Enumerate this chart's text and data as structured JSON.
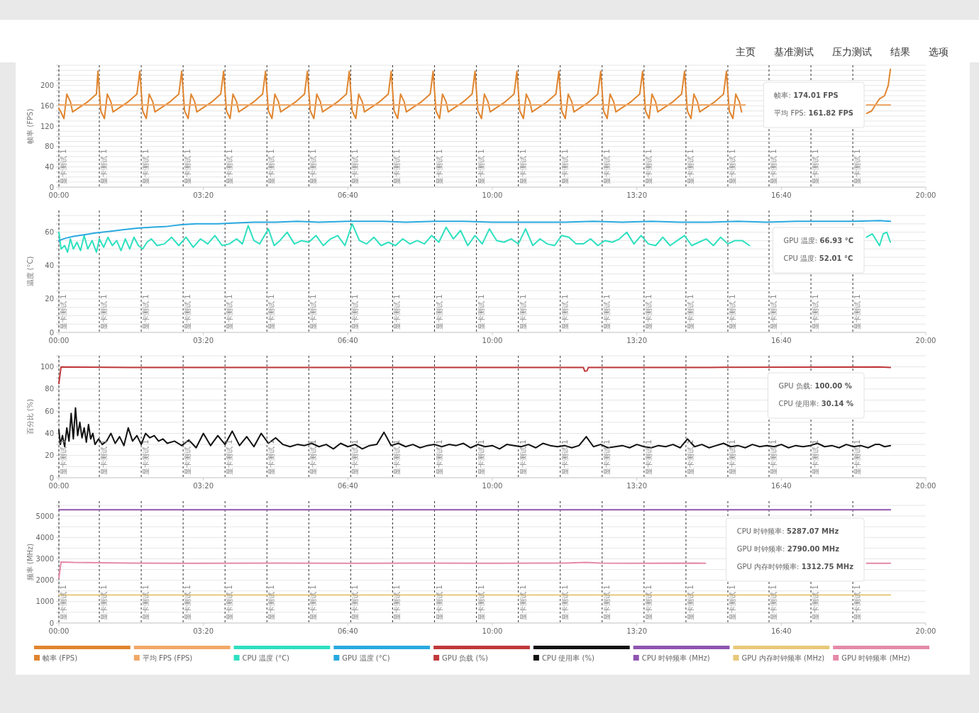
{
  "chart_data": [
    {
      "type": "other",
      "annotations": [
        "主页",
        "基准测试",
        "压力测试",
        "结果",
        "选项"
      ]
    },
    {
      "type": "line",
      "ylabel": "帧率 (FPS)",
      "xlim": [
        0,
        1200
      ],
      "ylim": [
        0,
        240
      ],
      "grid": "y",
      "legend": "bottom",
      "xticks": [
        {
          "value": 0,
          "label": "00:00"
        },
        {
          "value": 200,
          "label": "03:20"
        },
        {
          "value": 400,
          "label": "06:40"
        },
        {
          "value": 600,
          "label": "10:00"
        },
        {
          "value": 800,
          "label": "13:20"
        },
        {
          "value": 1000,
          "label": "16:40"
        },
        {
          "value": 1200,
          "label": "20:00"
        }
      ],
      "yticks": [
        0,
        {
          "value": 10,
          "label": null
        },
        {
          "value": 20,
          "label": null
        },
        {
          "value": 30,
          "label": null
        },
        40,
        {
          "value": 50,
          "label": null
        },
        {
          "value": 60,
          "label": null
        },
        {
          "value": 70,
          "label": null
        },
        80,
        {
          "value": 90,
          "label": null
        },
        {
          "value": 100,
          "label": null
        },
        {
          "value": 110,
          "label": null
        },
        120,
        {
          "value": 130,
          "label": null
        },
        {
          "value": 140,
          "label": null
        },
        {
          "value": 150,
          "label": null
        },
        160,
        {
          "value": 170,
          "label": null
        },
        {
          "value": 180,
          "label": null
        },
        {
          "value": 190,
          "label": null
        },
        200,
        {
          "value": 210,
          "label": null
        },
        {
          "value": 220,
          "label": null
        },
        {
          "value": 230,
          "label": null
        },
        {
          "value": 240,
          "label": null
        }
      ],
      "series": [
        {
          "name": "帧率 (FPS)",
          "color": "#e0852f",
          "x": [
            0,
            2,
            7,
            11,
            16,
            19,
            40,
            52,
            54,
            58,
            63,
            67,
            72,
            75,
            96,
            108,
            112,
            116,
            121,
            125,
            130,
            133,
            154,
            166,
            170,
            174,
            179,
            183,
            188,
            191,
            212,
            224,
            228,
            232,
            237,
            241,
            246,
            249,
            270,
            282,
            286,
            290,
            295,
            299,
            304,
            307,
            328,
            340,
            344,
            348,
            353,
            357,
            362,
            365,
            386,
            398,
            402,
            406,
            411,
            415,
            420,
            423,
            444,
            456,
            460,
            464,
            469,
            473,
            478,
            481,
            502,
            514,
            518,
            522,
            527,
            531,
            536,
            539,
            560,
            572,
            576,
            580,
            585,
            589,
            594,
            597,
            618,
            630,
            634,
            638,
            643,
            647,
            652,
            655,
            676,
            688,
            692,
            696,
            701,
            705,
            710,
            713,
            734,
            746,
            750,
            754,
            759,
            763,
            768,
            771,
            792,
            804,
            808,
            812,
            817,
            821,
            826,
            829,
            850,
            862,
            866,
            870,
            875,
            879,
            884,
            887,
            908,
            920,
            924,
            928,
            933,
            937,
            942,
            945
          ],
          "values": [
            155,
            150,
            135,
            183,
            168,
            148,
            168,
            183,
            228,
            150,
            135,
            183,
            168,
            148,
            168,
            183,
            228,
            150,
            135,
            183,
            168,
            148,
            168,
            183,
            228,
            150,
            135,
            183,
            168,
            148,
            168,
            183,
            228,
            150,
            135,
            183,
            168,
            148,
            168,
            183,
            228,
            150,
            135,
            183,
            168,
            148,
            168,
            183,
            228,
            150,
            135,
            183,
            168,
            148,
            168,
            183,
            228,
            150,
            135,
            183,
            168,
            148,
            168,
            183,
            228,
            150,
            135,
            183,
            168,
            148,
            168,
            183,
            228,
            150,
            135,
            183,
            168,
            148,
            168,
            183,
            228,
            150,
            135,
            183,
            168,
            148,
            168,
            183,
            228,
            150,
            135,
            183,
            168,
            148,
            168,
            183,
            228,
            150,
            135,
            183,
            168,
            148,
            168,
            183,
            228,
            150,
            135,
            183,
            168,
            148,
            168,
            183,
            228,
            150,
            135,
            183,
            168,
            148,
            168,
            183,
            228,
            150,
            135,
            183,
            168,
            148,
            168,
            183,
            228,
            150,
            135,
            183,
            168,
            148
          ]
        },
        {
          "color": "#e0852f",
          "x": [
            1118,
            1125,
            1136,
            1143,
            1148,
            1151
          ],
          "values": [
            145,
            150,
            174,
            180,
            200,
            232
          ]
        },
        {
          "name": "平均 FPS (FPS)",
          "color": "#f0a868",
          "x": [
            0,
            950
          ],
          "values": [
            162,
            162
          ]
        },
        {
          "color": "#f0a868",
          "x": [
            1118,
            1151
          ],
          "values": [
            162,
            162
          ]
        }
      ],
      "annotations": [
        "帧率: 174.01 FPS",
        "平均 FPS: 161.82 FPS"
      ],
      "ref_lines": [
        {
          "axis": "x",
          "value": 0,
          "label": "显卡测试 1",
          "color": "#333333",
          "line_style": "dashed"
        },
        {
          "axis": "x",
          "value": 56,
          "label": "显卡测试 1",
          "color": "#333333",
          "line_style": "dashed"
        },
        {
          "axis": "x",
          "value": 114,
          "label": "显卡测试 1",
          "color": "#333333",
          "line_style": "dashed"
        },
        {
          "axis": "x",
          "value": 172,
          "label": "显卡测试 1",
          "color": "#333333",
          "line_style": "dashed"
        },
        {
          "axis": "x",
          "value": 230,
          "label": "显卡测试 1",
          "color": "#333333",
          "line_style": "dashed"
        },
        {
          "axis": "x",
          "value": 288,
          "label": "显卡测试 1",
          "color": "#333333",
          "line_style": "dashed"
        },
        {
          "axis": "x",
          "value": 346,
          "label": "显卡测试 1",
          "color": "#333333",
          "line_style": "dashed"
        },
        {
          "axis": "x",
          "value": 404,
          "label": "显卡测试 1",
          "color": "#333333",
          "line_style": "dashed"
        },
        {
          "axis": "x",
          "value": 462,
          "label": "显卡测试 1",
          "color": "#333333",
          "line_style": "dashed"
        },
        {
          "axis": "x",
          "value": 520,
          "label": "显卡测试 1",
          "color": "#333333",
          "line_style": "dashed"
        },
        {
          "axis": "x",
          "value": 578,
          "label": "显卡测试 1",
          "color": "#333333",
          "line_style": "dashed"
        },
        {
          "axis": "x",
          "value": 636,
          "label": "显卡测试 1",
          "color": "#333333",
          "line_style": "dashed"
        },
        {
          "axis": "x",
          "value": 694,
          "label": "显卡测试 1",
          "color": "#333333",
          "line_style": "dashed"
        },
        {
          "axis": "x",
          "value": 752,
          "label": "显卡测试 1",
          "color": "#333333",
          "line_style": "dashed"
        },
        {
          "axis": "x",
          "value": 810,
          "label": "显卡测试 1",
          "color": "#333333",
          "line_style": "dashed"
        },
        {
          "axis": "x",
          "value": 868,
          "label": "显卡测试 1",
          "color": "#333333",
          "line_style": "dashed"
        },
        {
          "axis": "x",
          "value": 926,
          "label": "显卡测试 1",
          "color": "#333333",
          "line_style": "dashed"
        },
        {
          "axis": "x",
          "value": 983,
          "label": "显卡测试 1",
          "color": "#333333",
          "line_style": "dashed"
        },
        {
          "axis": "x",
          "value": 1041,
          "label": "显卡测试 1",
          "color": "#333333",
          "line_style": "dashed"
        },
        {
          "axis": "x",
          "value": 1099,
          "label": "显卡测试 1",
          "color": "#333333",
          "line_style": "dashed"
        }
      ]
    },
    {
      "type": "line",
      "ylabel": "温度 (°C)",
      "xlim": [
        0,
        1200
      ],
      "ylim": [
        0,
        73
      ],
      "grid": "y",
      "legend": "bottom",
      "xticks": [
        {
          "value": 0,
          "label": "00:00"
        },
        {
          "value": 200,
          "label": "03:20"
        },
        {
          "value": 400,
          "label": "06:40"
        },
        {
          "value": 600,
          "label": "10:00"
        },
        {
          "value": 800,
          "label": "13:20"
        },
        {
          "value": 1000,
          "label": "16:40"
        },
        {
          "value": 1200,
          "label": "20:00"
        }
      ],
      "yticks": [
        0,
        {
          "value": 5,
          "label": null
        },
        {
          "value": 10,
          "label": null
        },
        {
          "value": 15,
          "label": null
        },
        20,
        {
          "value": 25,
          "label": null
        },
        {
          "value": 30,
          "label": null
        },
        {
          "value": 35,
          "label": null
        },
        40,
        {
          "value": 45,
          "label": null
        },
        {
          "value": 50,
          "label": null
        },
        {
          "value": 55,
          "label": null
        },
        60,
        {
          "value": 65,
          "label": null
        },
        {
          "value": 70,
          "label": null
        }
      ],
      "series": [
        {
          "name": "CPU 温度 (°C)",
          "color": "#2de0c0",
          "x": [
            0,
            3,
            8,
            12,
            16,
            20,
            25,
            30,
            35,
            40,
            46,
            52,
            56,
            62,
            68,
            74,
            80,
            86,
            92,
            98,
            104,
            110,
            116,
            122,
            128,
            136,
            146,
            156,
            166,
            176,
            186,
            196,
            206,
            216,
            226,
            236,
            246,
            254,
            262,
            270,
            278,
            290,
            298,
            306,
            316,
            326,
            336,
            346,
            356,
            366,
            376,
            386,
            396,
            406,
            416,
            426,
            436,
            446,
            456,
            466,
            476,
            486,
            496,
            506,
            516,
            526,
            536,
            546,
            556,
            566,
            576,
            586,
            596,
            606,
            616,
            626,
            636,
            646,
            656,
            666,
            676,
            686,
            696,
            706,
            716,
            726,
            736,
            746,
            756,
            766,
            776,
            786,
            796,
            806,
            816,
            826,
            836,
            846,
            856,
            866,
            876,
            886,
            896,
            906,
            916,
            926,
            936,
            946,
            956
          ],
          "values": [
            60,
            50,
            52,
            48,
            56,
            50,
            54,
            49,
            58,
            50,
            55,
            48,
            56,
            51,
            57,
            52,
            55,
            49,
            56,
            50,
            57,
            52,
            50,
            54,
            56,
            52,
            53,
            57,
            52,
            57,
            51,
            56,
            53,
            58,
            52,
            53,
            56,
            53,
            64,
            55,
            53,
            62,
            52,
            55,
            60,
            53,
            55,
            54,
            58,
            52,
            56,
            58,
            52,
            65,
            55,
            53,
            57,
            52,
            54,
            52,
            56,
            53,
            55,
            53,
            58,
            54,
            63,
            56,
            61,
            52,
            58,
            53,
            62,
            55,
            54,
            56,
            53,
            62,
            52,
            56,
            53,
            52,
            58,
            57,
            53,
            53,
            56,
            52,
            55,
            54,
            56,
            60,
            53,
            58,
            53,
            52,
            57,
            52,
            55,
            58,
            52,
            54,
            56,
            52,
            57,
            53,
            55,
            55,
            52
          ]
        },
        {
          "color": "#2de0c0",
          "x": [
            1118,
            1126,
            1136,
            1141,
            1146,
            1151
          ],
          "values": [
            57,
            59,
            52,
            59,
            60,
            54
          ]
        },
        {
          "name": "GPU 温度 (°C)",
          "color": "#29a9e0",
          "x": [
            0,
            10,
            20,
            35,
            50,
            70,
            90,
            110,
            130,
            150,
            170,
            190,
            220,
            240,
            270,
            300,
            330,
            360,
            400,
            450,
            480,
            520,
            560,
            600,
            640,
            700,
            740,
            780,
            820,
            860,
            900,
            940,
            980,
            1020,
            1060,
            1100,
            1136,
            1151
          ],
          "values": [
            55,
            56.5,
            57.5,
            58.5,
            59.5,
            60.5,
            61.5,
            62.5,
            63,
            63.5,
            64.5,
            65,
            65,
            65.5,
            66,
            66,
            66.5,
            66,
            66.5,
            66.5,
            66,
            66.5,
            66.5,
            66,
            66,
            66,
            66.5,
            66,
            66.5,
            66,
            66,
            66.5,
            66,
            66.5,
            66.5,
            66.5,
            67,
            66.5
          ]
        }
      ],
      "annotations": [
        "GPU 温度: 66.93 °C",
        "CPU 温度: 52.01 °C"
      ],
      "ref_lines": [
        {
          "axis": "x",
          "value": 0,
          "label": "显卡测试 1",
          "color": "#333333",
          "line_style": "dashed"
        },
        {
          "axis": "x",
          "value": 56,
          "label": "显卡测试 1",
          "color": "#333333",
          "line_style": "dashed"
        },
        {
          "axis": "x",
          "value": 114,
          "label": "显卡测试 1",
          "color": "#333333",
          "line_style": "dashed"
        },
        {
          "axis": "x",
          "value": 172,
          "label": "显卡测试 1",
          "color": "#333333",
          "line_style": "dashed"
        },
        {
          "axis": "x",
          "value": 230,
          "label": "显卡测试 1",
          "color": "#333333",
          "line_style": "dashed"
        },
        {
          "axis": "x",
          "value": 288,
          "label": "显卡测试 1",
          "color": "#333333",
          "line_style": "dashed"
        },
        {
          "axis": "x",
          "value": 346,
          "label": "显卡测试 1",
          "color": "#333333",
          "line_style": "dashed"
        },
        {
          "axis": "x",
          "value": 404,
          "label": "显卡测试 1",
          "color": "#333333",
          "line_style": "dashed"
        },
        {
          "axis": "x",
          "value": 462,
          "label": "显卡测试 1",
          "color": "#333333",
          "line_style": "dashed"
        },
        {
          "axis": "x",
          "value": 520,
          "label": "显卡测试 1",
          "color": "#333333",
          "line_style": "dashed"
        },
        {
          "axis": "x",
          "value": 578,
          "label": "显卡测试 1",
          "color": "#333333",
          "line_style": "dashed"
        },
        {
          "axis": "x",
          "value": 636,
          "label": "显卡测试 1",
          "color": "#333333",
          "line_style": "dashed"
        },
        {
          "axis": "x",
          "value": 694,
          "label": "显卡测试 1",
          "color": "#333333",
          "line_style": "dashed"
        },
        {
          "axis": "x",
          "value": 752,
          "label": "显卡测试 1",
          "color": "#333333",
          "line_style": "dashed"
        },
        {
          "axis": "x",
          "value": 810,
          "label": "显卡测试 1",
          "color": "#333333",
          "line_style": "dashed"
        },
        {
          "axis": "x",
          "value": 868,
          "label": "显卡测试 1",
          "color": "#333333",
          "line_style": "dashed"
        },
        {
          "axis": "x",
          "value": 926,
          "label": "显卡测试 1",
          "color": "#333333",
          "line_style": "dashed"
        },
        {
          "axis": "x",
          "value": 983,
          "label": "显卡测试 1",
          "color": "#333333",
          "line_style": "dashed"
        },
        {
          "axis": "x",
          "value": 1041,
          "label": "显卡测试 1",
          "color": "#333333",
          "line_style": "dashed"
        },
        {
          "axis": "x",
          "value": 1099,
          "label": "显卡测试 1",
          "color": "#333333",
          "line_style": "dashed"
        }
      ]
    },
    {
      "type": "line",
      "ylabel": "百分比 (%)",
      "xlim": [
        0,
        1200
      ],
      "ylim": [
        0,
        110
      ],
      "grid": "y",
      "legend": "bottom",
      "xticks": [
        {
          "value": 0,
          "label": "00:00"
        },
        {
          "value": 200,
          "label": "03:20"
        },
        {
          "value": 400,
          "label": "06:40"
        },
        {
          "value": 600,
          "label": "10:00"
        },
        {
          "value": 800,
          "label": "13:20"
        },
        {
          "value": 1000,
          "label": "16:40"
        },
        {
          "value": 1200,
          "label": "20:00"
        }
      ],
      "yticks": [
        0,
        {
          "value": 10,
          "label": null
        },
        20,
        {
          "value": 30,
          "label": null
        },
        40,
        {
          "value": 50,
          "label": null
        },
        60,
        {
          "value": 70,
          "label": null
        },
        80,
        {
          "value": 90,
          "label": null
        },
        100,
        {
          "value": 110,
          "label": null
        }
      ],
      "series": [
        {
          "name": "GPU 负载 (%)",
          "color": "#c0393b",
          "x": [
            0,
            3,
            100,
            300,
            500,
            700,
            726,
            728,
            731,
            733,
            900,
            1136,
            1151
          ],
          "values": [
            85,
            100,
            99.5,
            99.5,
            99.5,
            99.5,
            99.5,
            96,
            96.5,
            99.5,
            99.5,
            100,
            99.5
          ]
        },
        {
          "name": "CPU 使用率 (%)",
          "color": "#111111",
          "x": [
            0,
            2,
            5,
            8,
            11,
            14,
            17,
            20,
            23,
            26,
            29,
            32,
            35,
            38,
            41,
            44,
            47,
            50,
            55,
            60,
            66,
            72,
            78,
            84,
            90,
            96,
            102,
            108,
            114,
            120,
            126,
            132,
            138,
            144,
            150,
            160,
            170,
            180,
            190,
            200,
            210,
            220,
            230,
            240,
            250,
            260,
            270,
            280,
            290,
            300,
            310,
            320,
            330,
            340,
            350,
            360,
            370,
            380,
            390,
            400,
            410,
            420,
            430,
            440,
            450,
            460,
            470,
            480,
            490,
            500,
            510,
            520,
            530,
            540,
            550,
            560,
            570,
            580,
            590,
            600,
            610,
            620,
            630,
            640,
            650,
            660,
            670,
            680,
            690,
            700,
            710,
            720,
            730,
            740,
            750,
            760,
            770,
            780,
            790,
            800,
            810,
            820,
            830,
            840,
            850,
            860,
            870,
            880,
            890,
            900,
            910,
            920,
            930,
            940,
            950,
            960,
            970,
            980,
            990,
            1000,
            1010,
            1020,
            1030,
            1040,
            1050,
            1060,
            1070,
            1080,
            1090,
            1100,
            1110,
            1120,
            1130,
            1136,
            1143,
            1151
          ],
          "values": [
            43,
            30,
            38,
            28,
            45,
            33,
            58,
            35,
            63,
            38,
            50,
            36,
            45,
            32,
            48,
            35,
            40,
            30,
            35,
            30,
            33,
            40,
            31,
            37,
            29,
            45,
            33,
            38,
            30,
            40,
            36,
            38,
            33,
            35,
            31,
            33,
            29,
            34,
            27,
            40,
            29,
            38,
            30,
            42,
            29,
            37,
            28,
            40,
            31,
            36,
            30,
            28,
            30,
            29,
            31,
            28,
            30,
            26,
            31,
            28,
            30,
            26,
            29,
            30,
            41,
            29,
            31,
            28,
            30,
            27,
            29,
            30,
            28,
            30,
            29,
            31,
            27,
            30,
            28,
            29,
            26,
            30,
            29,
            28,
            30,
            27,
            31,
            29,
            28,
            29,
            27,
            29,
            37,
            28,
            30,
            27,
            28,
            29,
            27,
            30,
            28,
            27,
            29,
            28,
            30,
            27,
            35,
            28,
            30,
            27,
            29,
            31,
            28,
            29,
            27,
            30,
            28,
            29,
            28,
            30,
            27,
            29,
            28,
            29,
            31,
            28,
            29,
            27,
            30,
            28,
            29,
            27,
            30,
            30,
            28,
            29
          ]
        }
      ],
      "annotations": [
        "GPU 负载: 100.00 %",
        "CPU 使用率: 30.14 %"
      ],
      "ref_lines": [
        {
          "axis": "x",
          "value": 0,
          "label": "显卡测试 1",
          "color": "#333333",
          "line_style": "dashed"
        },
        {
          "axis": "x",
          "value": 56,
          "label": "显卡测试 1",
          "color": "#333333",
          "line_style": "dashed"
        },
        {
          "axis": "x",
          "value": 114,
          "label": "显卡测试 1",
          "color": "#333333",
          "line_style": "dashed"
        },
        {
          "axis": "x",
          "value": 172,
          "label": "显卡测试 1",
          "color": "#333333",
          "line_style": "dashed"
        },
        {
          "axis": "x",
          "value": 230,
          "label": "显卡测试 1",
          "color": "#333333",
          "line_style": "dashed"
        },
        {
          "axis": "x",
          "value": 288,
          "label": "显卡测试 1",
          "color": "#333333",
          "line_style": "dashed"
        },
        {
          "axis": "x",
          "value": 346,
          "label": "显卡测试 1",
          "color": "#333333",
          "line_style": "dashed"
        },
        {
          "axis": "x",
          "value": 404,
          "label": "显卡测试 1",
          "color": "#333333",
          "line_style": "dashed"
        },
        {
          "axis": "x",
          "value": 462,
          "label": "显卡测试 1",
          "color": "#333333",
          "line_style": "dashed"
        },
        {
          "axis": "x",
          "value": 520,
          "label": "显卡测试 1",
          "color": "#333333",
          "line_style": "dashed"
        },
        {
          "axis": "x",
          "value": 578,
          "label": "显卡测试 1",
          "color": "#333333",
          "line_style": "dashed"
        },
        {
          "axis": "x",
          "value": 636,
          "label": "显卡测试 1",
          "color": "#333333",
          "line_style": "dashed"
        },
        {
          "axis": "x",
          "value": 694,
          "label": "显卡测试 1",
          "color": "#333333",
          "line_style": "dashed"
        },
        {
          "axis": "x",
          "value": 752,
          "label": "显卡测试 1",
          "color": "#333333",
          "line_style": "dashed"
        },
        {
          "axis": "x",
          "value": 810,
          "label": "显卡测试 1",
          "color": "#333333",
          "line_style": "dashed"
        },
        {
          "axis": "x",
          "value": 868,
          "label": "显卡测试 1",
          "color": "#333333",
          "line_style": "dashed"
        },
        {
          "axis": "x",
          "value": 926,
          "label": "显卡测试 1",
          "color": "#333333",
          "line_style": "dashed"
        },
        {
          "axis": "x",
          "value": 983,
          "label": "显卡测试 1",
          "color": "#333333",
          "line_style": "dashed"
        },
        {
          "axis": "x",
          "value": 1041,
          "label": "显卡测试 1",
          "color": "#333333",
          "line_style": "dashed"
        },
        {
          "axis": "x",
          "value": 1099,
          "label": "显卡测试 1",
          "color": "#333333",
          "line_style": "dashed"
        }
      ]
    },
    {
      "type": "line",
      "ylabel": "频率 (MHz)",
      "xlim": [
        0,
        1200
      ],
      "ylim": [
        0,
        5700
      ],
      "grid": "y",
      "legend": "bottom",
      "xticks": [
        {
          "value": 0,
          "label": "00:00"
        },
        {
          "value": 200,
          "label": "03:20"
        },
        {
          "value": 400,
          "label": "06:40"
        },
        {
          "value": 600,
          "label": "10:00"
        },
        {
          "value": 800,
          "label": "13:20"
        },
        {
          "value": 1000,
          "label": "16:40"
        },
        {
          "value": 1200,
          "label": "20:00"
        }
      ],
      "yticks": [
        0,
        {
          "value": 500,
          "label": null
        },
        1000,
        {
          "value": 1500,
          "label": null
        },
        2000,
        {
          "value": 2500,
          "label": null
        },
        3000,
        {
          "value": 3500,
          "label": null
        },
        4000,
        {
          "value": 4500,
          "label": null
        },
        5000,
        {
          "value": 5500,
          "label": null
        }
      ],
      "series": [
        {
          "name": "CPU 时钟频率 (MHz)",
          "color": "#8e54b0",
          "x": [
            0,
            1136,
            1151
          ],
          "values": [
            5290,
            5290,
            5290
          ]
        },
        {
          "name": "GPU 内存时钟频率 (MHz)",
          "color": "#e8c878",
          "x": [
            0,
            1136,
            1151
          ],
          "values": [
            1310,
            1310,
            1310
          ]
        },
        {
          "name": "GPU 时钟频率 (MHz)",
          "color": "#e48aa8",
          "x": [
            0,
            3,
            20,
            60,
            100,
            200,
            300,
            400,
            500,
            600,
            700,
            730,
            750,
            800,
            880,
            895
          ],
          "values": [
            2100,
            2850,
            2830,
            2820,
            2800,
            2790,
            2800,
            2790,
            2800,
            2790,
            2800,
            2830,
            2800,
            2790,
            2800,
            2790
          ]
        },
        {
          "color": "#e48aa8",
          "x": [
            1118,
            1136,
            1151
          ],
          "values": [
            2790,
            2790,
            2790
          ]
        }
      ],
      "annotations": [
        "CPU 时钟频率: 5287.07 MHz",
        "GPU 时钟频率: 2790.00 MHz",
        "GPU 内存时钟频率: 1312.75 MHz"
      ],
      "ref_lines": [
        {
          "axis": "x",
          "value": 0,
          "label": "显卡测试 1",
          "color": "#333333",
          "line_style": "dashed"
        },
        {
          "axis": "x",
          "value": 56,
          "label": "显卡测试 1",
          "color": "#333333",
          "line_style": "dashed"
        },
        {
          "axis": "x",
          "value": 114,
          "label": "显卡测试 1",
          "color": "#333333",
          "line_style": "dashed"
        },
        {
          "axis": "x",
          "value": 172,
          "label": "显卡测试 1",
          "color": "#333333",
          "line_style": "dashed"
        },
        {
          "axis": "x",
          "value": 230,
          "label": "显卡测试 1",
          "color": "#333333",
          "line_style": "dashed"
        },
        {
          "axis": "x",
          "value": 288,
          "label": "显卡测试 1",
          "color": "#333333",
          "line_style": "dashed"
        },
        {
          "axis": "x",
          "value": 346,
          "label": "显卡测试 1",
          "color": "#333333",
          "line_style": "dashed"
        },
        {
          "axis": "x",
          "value": 404,
          "label": "显卡测试 1",
          "color": "#333333",
          "line_style": "dashed"
        },
        {
          "axis": "x",
          "value": 462,
          "label": "显卡测试 1",
          "color": "#333333",
          "line_style": "dashed"
        },
        {
          "axis": "x",
          "value": 520,
          "label": "显卡测试 1",
          "color": "#333333",
          "line_style": "dashed"
        },
        {
          "axis": "x",
          "value": 578,
          "label": "显卡测试 1",
          "color": "#333333",
          "line_style": "dashed"
        },
        {
          "axis": "x",
          "value": 636,
          "label": "显卡测试 1",
          "color": "#333333",
          "line_style": "dashed"
        },
        {
          "axis": "x",
          "value": 694,
          "label": "显卡测试 1",
          "color": "#333333",
          "line_style": "dashed"
        },
        {
          "axis": "x",
          "value": 752,
          "label": "显卡测试 1",
          "color": "#333333",
          "line_style": "dashed"
        },
        {
          "axis": "x",
          "value": 810,
          "label": "显卡测试 1",
          "color": "#333333",
          "line_style": "dashed"
        },
        {
          "axis": "x",
          "value": 868,
          "label": "显卡测试 1",
          "color": "#333333",
          "line_style": "dashed"
        },
        {
          "axis": "x",
          "value": 926,
          "label": "显卡测试 1",
          "color": "#333333",
          "line_style": "dashed"
        },
        {
          "axis": "x",
          "value": 983,
          "label": "显卡测试 1",
          "color": "#333333",
          "line_style": "dashed"
        },
        {
          "axis": "x",
          "value": 1041,
          "label": "显卡测试 1",
          "color": "#333333",
          "line_style": "dashed"
        },
        {
          "axis": "x",
          "value": 1099,
          "label": "显卡测试 1",
          "color": "#333333",
          "line_style": "dashed"
        }
      ]
    }
  ]
}
